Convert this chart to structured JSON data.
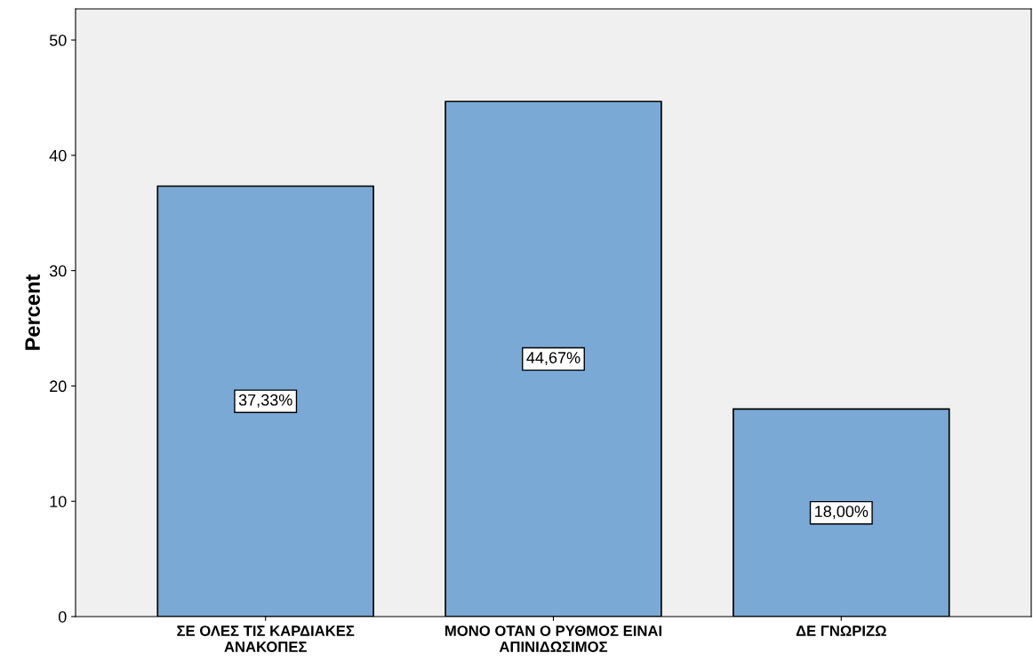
{
  "chart_data": {
    "type": "bar",
    "ylabel": "Percent",
    "categories": [
      "ΣΕ ΟΛΕΣ ΤΙΣ ΚΑΡΔΙΑΚΕΣ\nΑΝΑΚΟΠΕΣ",
      "ΜΟΝΟ ΟΤΑΝ Ο ΡΥΘΜΟΣ ΕΙΝΑΙ\nΑΠΙΝΙΔΩΣΙΜΟΣ",
      "ΔΕ ΓΝΩΡΙΖΩ"
    ],
    "values": [
      37.33,
      44.67,
      18.0
    ],
    "value_labels": [
      "37,33%",
      "44,67%",
      "18,00%"
    ],
    "color": "#7aa9d6",
    "ylim": [
      0,
      52.7
    ],
    "yticks": [
      0,
      10,
      20,
      30,
      40,
      50
    ],
    "grid": false,
    "legend": false
  }
}
